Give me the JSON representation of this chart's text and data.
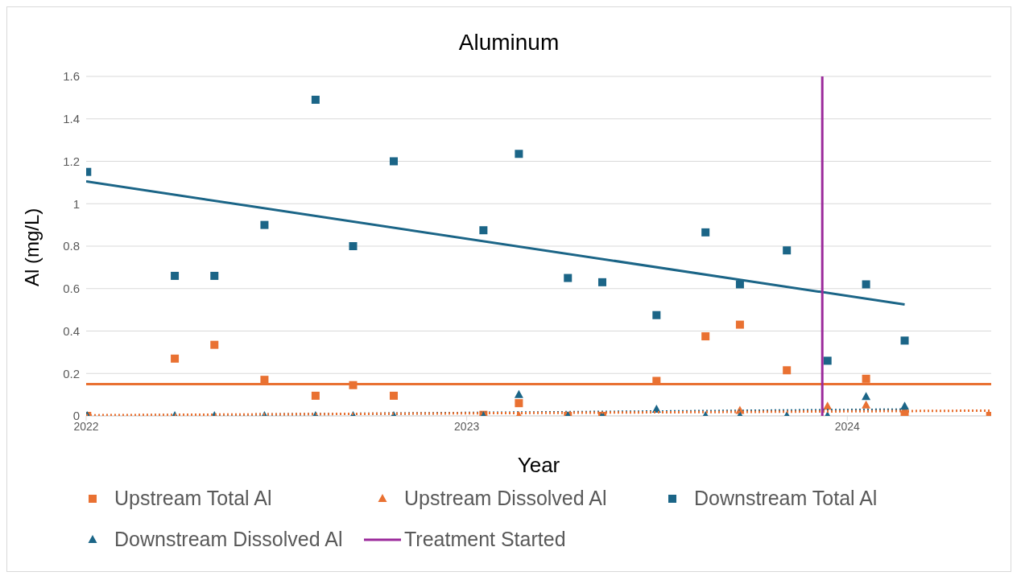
{
  "chart_data": {
    "type": "scatter",
    "title": "Aluminum",
    "xlabel": "Year",
    "ylabel": "Al (mg/L)",
    "xlim": [
      "2022-01-01",
      "2024-05-18"
    ],
    "xticks": [
      "2022",
      "2023",
      "2024"
    ],
    "ylim": [
      0,
      1.6
    ],
    "yticks": [
      0,
      0.2,
      0.4,
      0.6,
      0.8,
      1,
      1.2,
      1.4,
      1.6
    ],
    "grid": "y",
    "legend": "bottom",
    "x": [
      "2022-01-02",
      "2022-03-27",
      "2022-05-04",
      "2022-06-21",
      "2022-08-09",
      "2022-09-14",
      "2022-10-23",
      "2023-01-17",
      "2023-02-20",
      "2023-04-08",
      "2023-05-11",
      "2023-07-02",
      "2023-08-18",
      "2023-09-20",
      "2023-11-04",
      "2023-12-13",
      "2024-01-19",
      "2024-02-25",
      "2024-05-17"
    ],
    "series": [
      {
        "name": "Upstream Total Al",
        "color": "#e97132",
        "marker": "square",
        "values": [
          0,
          0.27,
          0.335,
          0.17,
          0.095,
          0.145,
          0.095,
          0.005,
          0.06,
          0,
          0,
          0.165,
          0.375,
          0.43,
          0.215,
          null,
          0.175,
          0,
          0
        ]
      },
      {
        "name": "Upstream Dissolved Al",
        "color": "#e97132",
        "marker": "triangle",
        "values": [
          null,
          null,
          null,
          null,
          null,
          null,
          null,
          null,
          0,
          null,
          null,
          null,
          null,
          0.025,
          null,
          0.045,
          0.05,
          0.03,
          null
        ]
      },
      {
        "name": "Downstream Total Al",
        "color": "#1b6587",
        "marker": "square",
        "values": [
          1.15,
          0.66,
          0.66,
          0.9,
          1.49,
          0.8,
          1.2,
          0.875,
          1.235,
          0.65,
          0.63,
          0.475,
          0.865,
          0.62,
          0.78,
          0.26,
          0.62,
          0.355,
          null
        ]
      },
      {
        "name": "Downstream Dissolved Al",
        "color": "#1b6587",
        "marker": "triangle",
        "values": [
          0,
          0,
          0,
          0,
          0,
          0,
          0,
          0,
          0.1,
          0,
          0,
          0.03,
          0,
          0,
          0,
          0,
          0.09,
          0.045,
          null
        ]
      },
      {
        "type": "line",
        "color": "#1b6587",
        "line_style": "solid",
        "marker": "none",
        "x": [
          "2022-01-01",
          "2024-02-25"
        ],
        "values": [
          1.105,
          0.525
        ]
      },
      {
        "type": "line",
        "color": "#1b6587",
        "line_style": "dotted",
        "marker": "none",
        "x": [
          "2022-01-01",
          "2024-02-25"
        ],
        "values": [
          0,
          0.03
        ]
      },
      {
        "type": "line",
        "color": "#e97132",
        "line_style": "dotted",
        "marker": "none",
        "x": [
          "2022-01-01",
          "2024-05-17"
        ],
        "values": [
          0.003,
          0.025
        ]
      },
      {
        "name": "Treatment Started",
        "type": "line",
        "color": "#9b2a9b",
        "line_style": "solid",
        "marker": "none",
        "x": [
          "2023-12-08",
          "2023-12-08"
        ],
        "values": [
          0,
          1.6
        ]
      }
    ],
    "ref_lines": [
      {
        "axis": "y",
        "value": 0.15,
        "color": "#e97132",
        "line_style": "solid"
      }
    ]
  }
}
